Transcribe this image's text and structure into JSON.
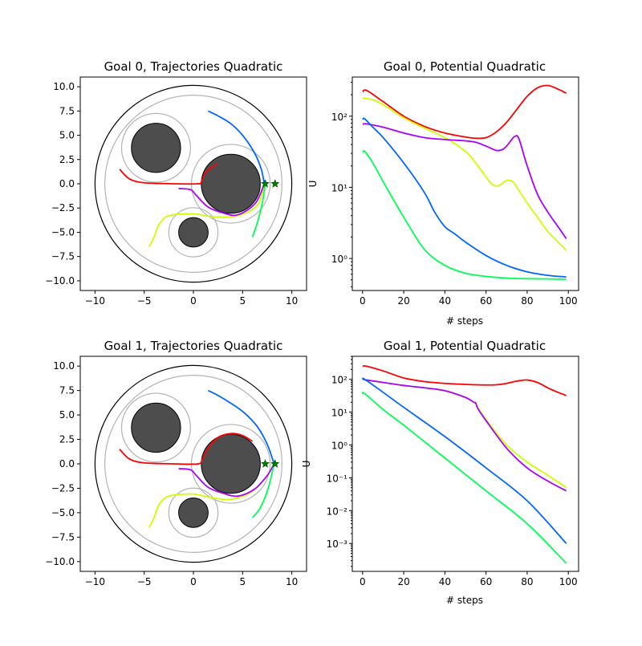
{
  "chart_data": [
    {
      "type": "scatter",
      "title": "Goal 0, Trajectories Quadratic",
      "xlim": [
        -11.5,
        11.5
      ],
      "ylim": [
        -11,
        11
      ],
      "xticks": [
        -10,
        -5,
        0,
        5,
        10
      ],
      "yticks": [
        -10.0,
        -7.5,
        -5.0,
        -2.5,
        0.0,
        2.5,
        5.0,
        7.5,
        10.0
      ],
      "xtick_labels": [
        "−10",
        "−5",
        "0",
        "5",
        "10"
      ],
      "ytick_labels": [
        "−10.0",
        "−7.5",
        "−5.0",
        "−2.5",
        "0.0",
        "2.5",
        "5.0",
        "7.5",
        "10.0"
      ],
      "boundary": {
        "cx": 0,
        "cy": 0,
        "r": 10,
        "safety_r": 9
      },
      "obstacles": [
        {
          "cx": -3.8,
          "cy": 3.7,
          "r": 2.5,
          "safety_r": 3.5
        },
        {
          "cx": 3.8,
          "cy": 0.0,
          "r": 3.0,
          "safety_r": 4.0
        },
        {
          "cx": 0.0,
          "cy": -5.0,
          "r": 1.5,
          "safety_r": 2.5
        }
      ],
      "goals": [
        {
          "x": 7.3,
          "y": 0.0
        },
        {
          "x": 8.3,
          "y": 0.0
        }
      ],
      "trajectories": [
        {
          "color": "#ff0000",
          "points": [
            [
              -7.5,
              1.5
            ],
            [
              -6.5,
              0.5
            ],
            [
              -5,
              0.1
            ],
            [
              -2,
              0.0
            ],
            [
              0.5,
              0.0
            ],
            [
              0.8,
              0.2
            ],
            [
              1.2,
              1.1
            ],
            [
              2,
              1.8
            ],
            [
              2.4,
              2.1
            ]
          ]
        },
        {
          "color": "#0066ff",
          "points": [
            [
              1.5,
              7.5
            ],
            [
              2.5,
              7
            ],
            [
              3.8,
              6.2
            ],
            [
              5,
              5
            ],
            [
              6.2,
              3.2
            ],
            [
              6.9,
              1.5
            ],
            [
              7.2,
              0.0
            ]
          ]
        },
        {
          "color": "#ccff00",
          "points": [
            [
              -4.5,
              -6.5
            ],
            [
              -4,
              -5.5
            ],
            [
              -3.5,
              -4.2
            ],
            [
              -2.5,
              -3.3
            ],
            [
              0,
              -3.1
            ],
            [
              2,
              -3.4
            ],
            [
              4.5,
              -3.3
            ],
            [
              6.5,
              -2.2
            ],
            [
              7.2,
              0.0
            ]
          ]
        },
        {
          "color": "#aa00ff",
          "points": [
            [
              -1.5,
              -0.5
            ],
            [
              -0.3,
              -0.6
            ],
            [
              0.3,
              -1.2
            ],
            [
              1.5,
              -2.4
            ],
            [
              3,
              -3.0
            ],
            [
              4.5,
              -3.2
            ],
            [
              6.3,
              -2.0
            ],
            [
              7.2,
              0.0
            ]
          ]
        },
        {
          "color": "#00ff55",
          "points": [
            [
              6.0,
              -5.5
            ],
            [
              6.5,
              -4
            ],
            [
              7,
              -2
            ],
            [
              7.3,
              0.0
            ]
          ]
        }
      ]
    },
    {
      "type": "line",
      "title": "Goal 0, Potential Quadratic",
      "xlabel": "# steps",
      "ylabel": "U",
      "log_y": true,
      "xlim": [
        -5,
        105
      ],
      "ylim_log10": [
        -0.45,
        2.55
      ],
      "xticks": [
        0,
        20,
        40,
        60,
        80,
        100
      ],
      "xtick_labels": [
        "0",
        "20",
        "40",
        "60",
        "80",
        "100"
      ],
      "yticks_log10": [
        0,
        1,
        2
      ],
      "ytick_labels": [
        "10⁰",
        "10¹",
        "10²"
      ],
      "series": [
        {
          "color": "#ff0000",
          "x": [
            0,
            2,
            10,
            20,
            30,
            40,
            50,
            55,
            60,
            65,
            70,
            75,
            80,
            85,
            90,
            95,
            99
          ],
          "y": [
            220,
            230,
            160,
            100,
            72,
            58,
            51,
            49,
            50,
            60,
            82,
            125,
            190,
            250,
            270,
            240,
            210
          ]
        },
        {
          "color": "#ccff00",
          "x": [
            0,
            5,
            10,
            20,
            30,
            40,
            50,
            55,
            60,
            63,
            66,
            70,
            73,
            75,
            80,
            85,
            90,
            95,
            99
          ],
          "y": [
            180,
            170,
            145,
            95,
            68,
            50,
            32,
            22,
            14,
            11,
            10.5,
            12.5,
            12,
            10,
            6,
            3.8,
            2.4,
            1.7,
            1.3
          ]
        },
        {
          "color": "#aa00ff",
          "x": [
            0,
            2,
            10,
            20,
            30,
            40,
            50,
            55,
            60,
            65,
            68,
            70,
            72,
            74,
            76,
            80,
            85,
            90,
            95,
            99
          ],
          "y": [
            77,
            78,
            70,
            58,
            50,
            47,
            45,
            43,
            38,
            33,
            34,
            38,
            45,
            52,
            48,
            20,
            8,
            4.5,
            2.8,
            1.9
          ]
        },
        {
          "color": "#0066ff",
          "x": [
            0,
            1,
            5,
            10,
            20,
            30,
            35,
            40,
            45,
            50,
            60,
            70,
            80,
            90,
            99
          ],
          "y": [
            90,
            92,
            70,
            50,
            22,
            8.5,
            4.5,
            2.8,
            2.2,
            1.7,
            1.1,
            0.8,
            0.65,
            0.58,
            0.55
          ]
        },
        {
          "color": "#00ff55",
          "x": [
            0,
            1,
            5,
            10,
            20,
            30,
            40,
            50,
            60,
            70,
            80,
            90,
            99
          ],
          "y": [
            31,
            32,
            22,
            12,
            3.8,
            1.35,
            0.8,
            0.62,
            0.56,
            0.53,
            0.52,
            0.515,
            0.51
          ]
        }
      ]
    },
    {
      "type": "scatter",
      "title": "Goal 1, Trajectories Quadratic",
      "xlim": [
        -11.5,
        11.5
      ],
      "ylim": [
        -11,
        11
      ],
      "xticks": [
        -10,
        -5,
        0,
        5,
        10
      ],
      "yticks": [
        -10.0,
        -7.5,
        -5.0,
        -2.5,
        0.0,
        2.5,
        5.0,
        7.5,
        10.0
      ],
      "xtick_labels": [
        "−10",
        "−5",
        "0",
        "5",
        "10"
      ],
      "ytick_labels": [
        "−10.0",
        "−7.5",
        "−5.0",
        "−2.5",
        "0.0",
        "2.5",
        "5.0",
        "7.5",
        "10.0"
      ],
      "boundary": {
        "cx": 0,
        "cy": 0,
        "r": 10,
        "safety_r": 9
      },
      "obstacles": [
        {
          "cx": -3.8,
          "cy": 3.7,
          "r": 2.5,
          "safety_r": 3.5
        },
        {
          "cx": 3.8,
          "cy": 0.0,
          "r": 3.0,
          "safety_r": 4.0
        },
        {
          "cx": 0.0,
          "cy": -5.0,
          "r": 1.5,
          "safety_r": 2.5
        }
      ],
      "goals": [
        {
          "x": 7.3,
          "y": 0.0
        },
        {
          "x": 8.3,
          "y": 0.0
        }
      ],
      "trajectories": [
        {
          "color": "#ff0000",
          "points": [
            [
              -7.5,
              1.5
            ],
            [
              -6.5,
              0.5
            ],
            [
              -5,
              0.1
            ],
            [
              -2,
              0.0
            ],
            [
              0.5,
              0.0
            ],
            [
              0.9,
              0.5
            ],
            [
              1.5,
              1.6
            ],
            [
              2.5,
              2.7
            ],
            [
              3.8,
              3.1
            ],
            [
              5,
              2.9
            ],
            [
              6,
              2.3
            ]
          ]
        },
        {
          "color": "#0066ff",
          "points": [
            [
              1.5,
              7.5
            ],
            [
              2.5,
              7
            ],
            [
              3.8,
              6.2
            ],
            [
              5.2,
              5.2
            ],
            [
              6.5,
              3.8
            ],
            [
              7.5,
              2
            ],
            [
              8.2,
              0.0
            ]
          ]
        },
        {
          "color": "#ccff00",
          "points": [
            [
              -4.5,
              -6.5
            ],
            [
              -4,
              -5.5
            ],
            [
              -3.5,
              -4.2
            ],
            [
              -2.5,
              -3.3
            ],
            [
              0,
              -3.1
            ],
            [
              2,
              -3.5
            ],
            [
              4,
              -3.6
            ],
            [
              6,
              -2.8
            ],
            [
              7.5,
              -1.2
            ],
            [
              8.2,
              0.0
            ]
          ]
        },
        {
          "color": "#aa00ff",
          "points": [
            [
              -1.5,
              -0.5
            ],
            [
              -0.3,
              -0.6
            ],
            [
              0.3,
              -1.2
            ],
            [
              1.5,
              -2.4
            ],
            [
              3,
              -3.0
            ],
            [
              4.5,
              -3.3
            ],
            [
              6.2,
              -2.6
            ],
            [
              7.5,
              -1.2
            ],
            [
              8.2,
              0.0
            ]
          ]
        },
        {
          "color": "#00ff55",
          "points": [
            [
              6.0,
              -5.5
            ],
            [
              6.8,
              -4.5
            ],
            [
              7.6,
              -2.5
            ],
            [
              8.2,
              0.0
            ]
          ]
        }
      ]
    },
    {
      "type": "line",
      "title": "Goal 1, Potential Quadratic",
      "xlabel": "# steps",
      "ylabel": "U",
      "log_y": true,
      "xlim": [
        -5,
        105
      ],
      "ylim_log10": [
        -3.85,
        2.7
      ],
      "xticks": [
        0,
        20,
        40,
        60,
        80,
        100
      ],
      "xtick_labels": [
        "0",
        "20",
        "40",
        "60",
        "80",
        "100"
      ],
      "yticks_log10": [
        -3,
        -2,
        -1,
        0,
        1,
        2
      ],
      "ytick_labels": [
        "10⁻³",
        "10⁻²",
        "10⁻¹",
        "10⁰",
        "10¹",
        "10²"
      ],
      "series": [
        {
          "color": "#ff0000",
          "x": [
            0,
            2,
            10,
            20,
            30,
            40,
            50,
            55,
            60,
            65,
            70,
            75,
            80,
            85,
            90,
            95,
            99
          ],
          "y": [
            250,
            250,
            180,
            110,
            85,
            75,
            70,
            68,
            67,
            68,
            75,
            88,
            95,
            80,
            55,
            40,
            32
          ]
        },
        {
          "color": "#ccff00",
          "x": [
            0,
            2,
            10,
            20,
            30,
            40,
            50,
            55,
            56,
            60,
            70,
            80,
            90,
            99
          ],
          "y": [
            100,
            95,
            80,
            65,
            55,
            45,
            28,
            18,
            14,
            6,
            1.0,
            0.3,
            0.12,
            0.05
          ]
        },
        {
          "color": "#aa00ff",
          "x": [
            0,
            2,
            10,
            20,
            30,
            40,
            50,
            54,
            55,
            56,
            60,
            70,
            80,
            90,
            99
          ],
          "y": [
            100,
            95,
            80,
            65,
            55,
            45,
            28,
            20,
            19,
            13,
            5.5,
            0.8,
            0.2,
            0.08,
            0.04
          ]
        },
        {
          "color": "#0066ff",
          "x": [
            0,
            1,
            10,
            20,
            40,
            60,
            80,
            99
          ],
          "y": [
            100,
            100,
            40,
            14,
            1.8,
            0.2,
            0.02,
            0.001
          ]
        },
        {
          "color": "#00ff55",
          "x": [
            0,
            1,
            10,
            20,
            40,
            60,
            80,
            99
          ],
          "y": [
            35,
            37,
            12,
            4,
            0.4,
            0.04,
            0.004,
            0.00025
          ]
        }
      ]
    }
  ]
}
